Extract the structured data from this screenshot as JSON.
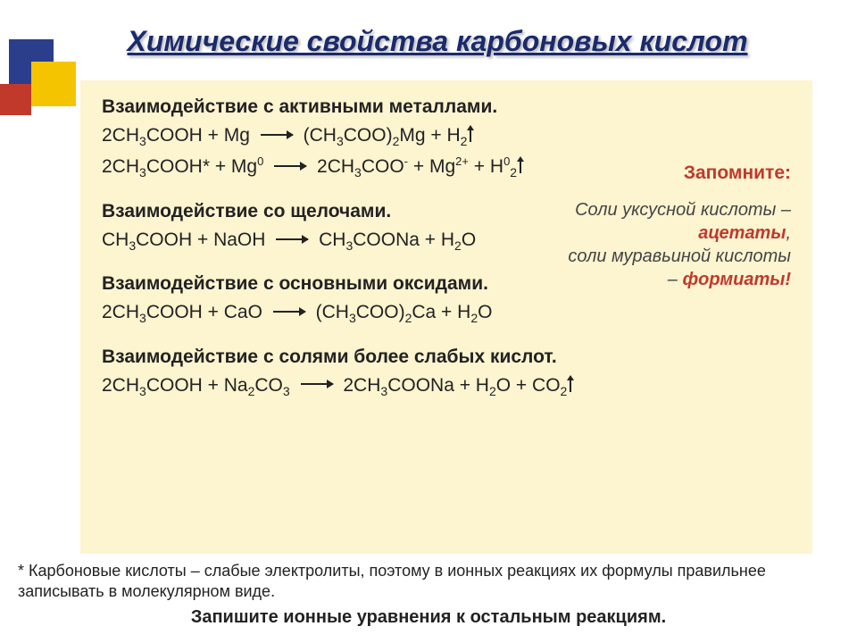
{
  "title": "Химические свойства карбоновых кислот",
  "sections": {
    "metals": {
      "head": "Взаимодействие с активными металлами.",
      "eq1": {
        "l": "2CH",
        "s1": "3",
        "m": "COOH + Mg",
        "r1": "(CH",
        "s2": "3",
        "r2": "COO)",
        "s3": "2",
        "r3": "Mg + H",
        "s4": "2"
      },
      "eq2": {
        "a": "2CH",
        "s1": "3",
        "b": "COOH* + Mg",
        "sup1": "0",
        "c": "2CH",
        "s2": "3",
        "d": "COO",
        "sup2": "-",
        "e": " + Mg",
        "sup3": "2+",
        "f": " + H",
        "sup4": "0",
        "s3": "2"
      }
    },
    "alkali": {
      "head": "Взаимодействие со щелочами.",
      "eq": {
        "a": "CH",
        "s1": "3",
        "b": "COOH + NaOH",
        "c": "CH",
        "s2": "3",
        "d": "COONa + H",
        "s3": "2",
        "e": "O"
      }
    },
    "oxides": {
      "head": "Взаимодействие с основными оксидами.",
      "eq": {
        "a": "2CH",
        "s1": "3",
        "b": "COOH + CaO",
        "c": "(CH",
        "s2": "3",
        "d": "COO)",
        "s3": "2",
        "e": "Ca + H",
        "s4": "2",
        "f": "O"
      }
    },
    "salts": {
      "head": "Взаимодействие с солями более слабых кислот.",
      "eq": {
        "a": "2CH",
        "s1": "3",
        "b": "COOH + Na",
        "s2": "2",
        "c": "CO",
        "s3": "3",
        "d": "2CH",
        "s4": "3",
        "e": "COONa + H",
        "s5": "2",
        "f": "O + CO",
        "s6": "2"
      }
    }
  },
  "remember": {
    "head": "Запомните:",
    "line1a": "Соли уксусной кислоты – ",
    "acetates": "ацетаты",
    "line1b": ",",
    "line2a": "соли муравьиной кислоты – ",
    "formates": "формиаты!"
  },
  "footnote": "* Карбоновые кислоты – слабые электролиты, поэтому в ионных реакциях  их формулы правильнее записывать в молекулярном виде.",
  "task": "Запишите ионные уравнения к остальным реакциям.",
  "colors": {
    "title": "#1a2a6c",
    "red": "#c0392b",
    "box_bg": "#fdf4d0",
    "deco_blue": "#2a3e8c",
    "deco_yellow": "#f5c400",
    "deco_red": "#c0392b"
  }
}
